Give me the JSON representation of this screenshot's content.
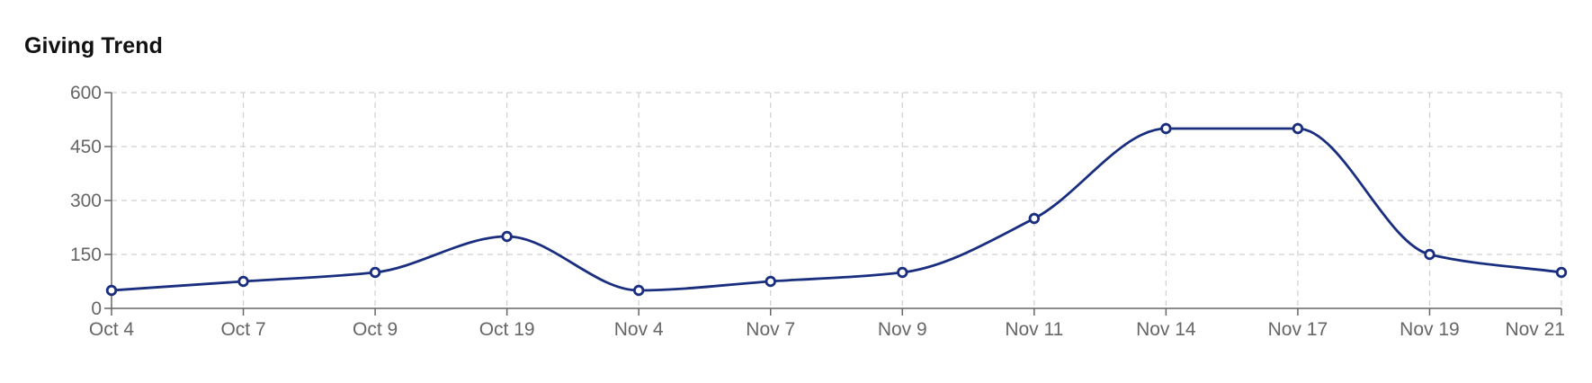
{
  "card": {
    "title": "Giving Trend"
  },
  "colors": {
    "series": "#1a2e80"
  },
  "chart_data": {
    "type": "line",
    "title": "Giving Trend",
    "xlabel": "",
    "ylabel": "",
    "categories": [
      "Oct 4",
      "Oct 7",
      "Oct 9",
      "Oct 19",
      "Nov 4",
      "Nov 7",
      "Nov 9",
      "Nov 11",
      "Nov 14",
      "Nov 17",
      "Nov 19",
      "Nov 21"
    ],
    "series": [
      {
        "values": [
          50,
          75,
          100,
          200,
          50,
          75,
          100,
          250,
          500,
          500,
          150,
          100
        ]
      }
    ],
    "ylim": [
      0,
      600
    ],
    "yticks": [
      0,
      150,
      300,
      450,
      600
    ],
    "grid": true,
    "legend": "none",
    "smooth": true
  }
}
